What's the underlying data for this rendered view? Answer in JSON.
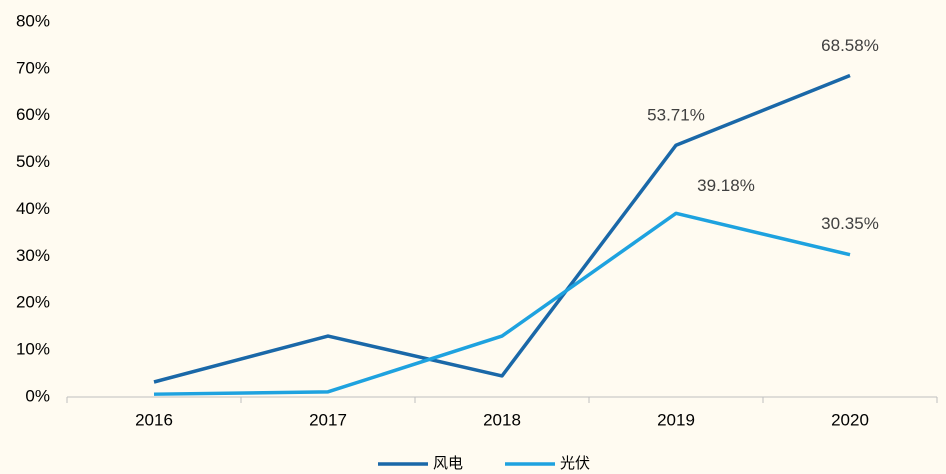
{
  "chart_data": {
    "type": "line",
    "categories": [
      "2016",
      "2017",
      "2018",
      "2019",
      "2020"
    ],
    "series": [
      {
        "name": "风电",
        "color": "#1a68a8",
        "values": [
          3.2,
          13,
          4.5,
          53.71,
          68.58
        ],
        "value_labels": [
          null,
          null,
          null,
          "53.71%",
          "68.58%"
        ]
      },
      {
        "name": "光伏",
        "color": "#1ea2df",
        "values": [
          0.6,
          1.1,
          13,
          39.18,
          30.35
        ],
        "value_labels": [
          null,
          null,
          null,
          "39.18%",
          "30.35%"
        ]
      }
    ],
    "ylim": [
      0,
      80
    ],
    "yticks": [
      {
        "value": 0,
        "label": "0%"
      },
      {
        "value": 10,
        "label": "10%"
      },
      {
        "value": 20,
        "label": "20%"
      },
      {
        "value": 30,
        "label": "30%"
      },
      {
        "value": 40,
        "label": "40%"
      },
      {
        "value": 50,
        "label": "50%"
      },
      {
        "value": 60,
        "label": "60%"
      },
      {
        "value": 70,
        "label": "70%"
      },
      {
        "value": 80,
        "label": "80%"
      }
    ],
    "grid": false,
    "legend": "bottom"
  }
}
